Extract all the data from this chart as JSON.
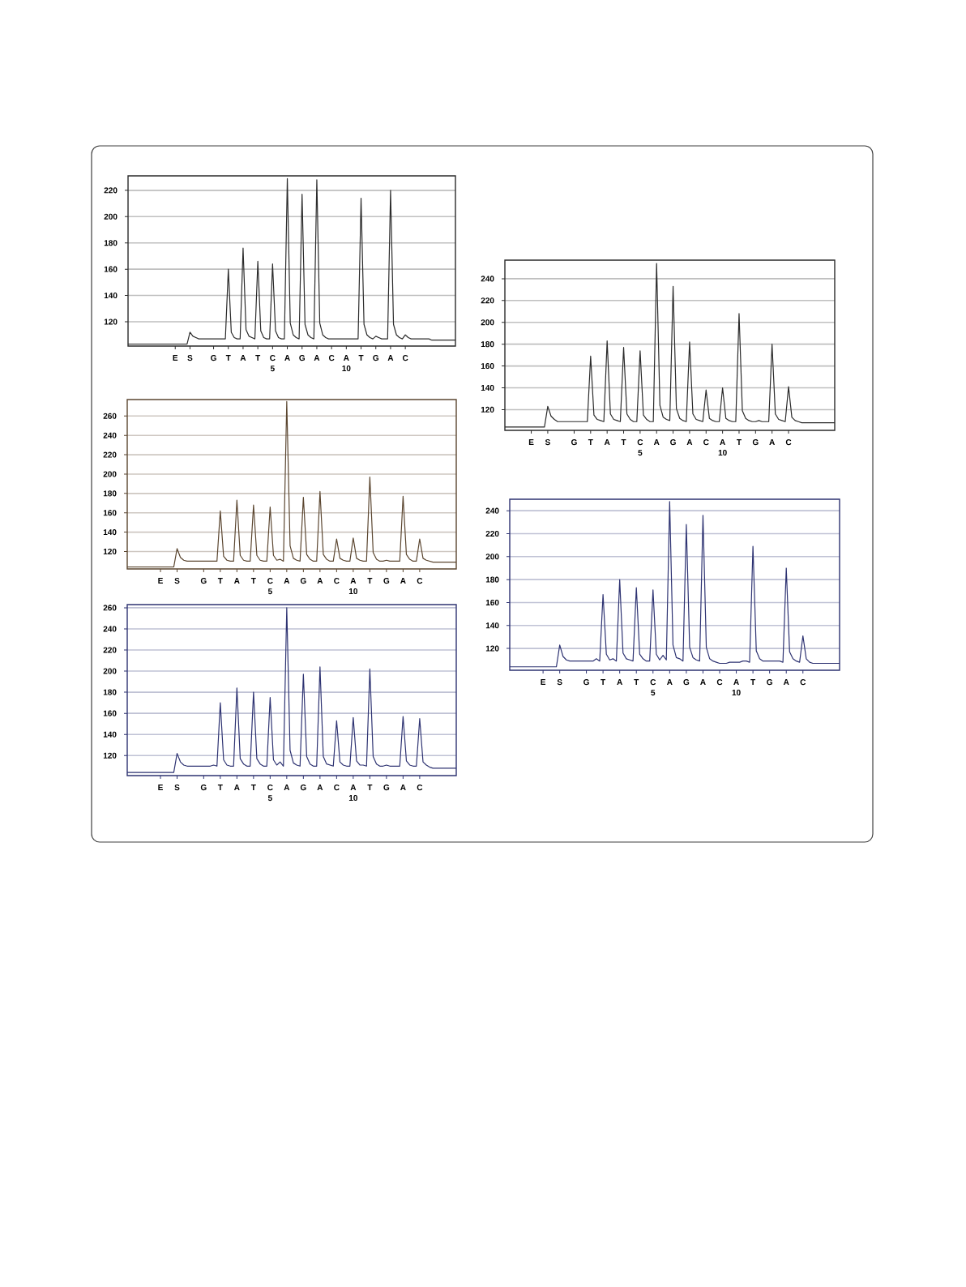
{
  "chart_data": [
    {
      "type": "line",
      "grid": "y",
      "ylim": [
        101.5,
        231
      ],
      "yticks": [
        120,
        140,
        160,
        180,
        200,
        220
      ],
      "categories": [
        null,
        null,
        null,
        null,
        null,
        null,
        null,
        null,
        null,
        null,
        null,
        null,
        null,
        null,
        null,
        null,
        "E",
        null,
        null,
        null,
        null,
        "S",
        null,
        null,
        null,
        null,
        null,
        null,
        null,
        "G",
        null,
        null,
        null,
        null,
        "T",
        null,
        null,
        null,
        null,
        "A",
        null,
        null,
        null,
        null,
        "T",
        null,
        null,
        null,
        null,
        "C 5",
        null,
        null,
        null,
        null,
        "A",
        null,
        null,
        null,
        null,
        "G",
        null,
        null,
        null,
        null,
        "A",
        null,
        null,
        null,
        null,
        "C",
        null,
        null,
        null,
        null,
        "A 10",
        null,
        null,
        null,
        null,
        "T",
        null,
        null,
        null,
        null,
        "G",
        null,
        null,
        null,
        null,
        "A",
        null,
        null,
        null,
        null,
        "C",
        null,
        null,
        null,
        null,
        null,
        null,
        null,
        null,
        null,
        null,
        null,
        null,
        null,
        null,
        null,
        null,
        null
      ],
      "series": [
        {
          "color": "#2b2b2b",
          "values": [
            103,
            103,
            103,
            103,
            103,
            103,
            103,
            103,
            103,
            103,
            103,
            103,
            103,
            103,
            103,
            103,
            103,
            103,
            103,
            103,
            103,
            112,
            109,
            108,
            107,
            107,
            107,
            107,
            107,
            107,
            107,
            107,
            107,
            107,
            160,
            112,
            108,
            107,
            107,
            176,
            114,
            109,
            108,
            107,
            166,
            113,
            108,
            107,
            107,
            164,
            113,
            108,
            107,
            107,
            229,
            119,
            110,
            108,
            107,
            217,
            118,
            110,
            108,
            107,
            228,
            119,
            110,
            108,
            107,
            107,
            107,
            107,
            107,
            107,
            107,
            107,
            107,
            107,
            107,
            214,
            118,
            110,
            108,
            107,
            109,
            108,
            107,
            107,
            107,
            220,
            118,
            110,
            108,
            107,
            110,
            108,
            107,
            107,
            107,
            107,
            107,
            107,
            107,
            106,
            106,
            106,
            106,
            106,
            106,
            106,
            106,
            106
          ]
        }
      ]
    },
    {
      "type": "line",
      "grid": "y",
      "ylim": [
        102,
        277
      ],
      "yticks": [
        120,
        140,
        160,
        180,
        200,
        220,
        240,
        260
      ],
      "categories": [
        null,
        null,
        null,
        null,
        null,
        null,
        null,
        null,
        null,
        null,
        "E",
        null,
        null,
        null,
        null,
        "S",
        null,
        null,
        null,
        null,
        null,
        null,
        null,
        "G",
        null,
        null,
        null,
        null,
        "T",
        null,
        null,
        null,
        null,
        "A",
        null,
        null,
        null,
        null,
        "T",
        null,
        null,
        null,
        null,
        "C 5",
        null,
        null,
        null,
        null,
        "A",
        null,
        null,
        null,
        null,
        "G",
        null,
        null,
        null,
        null,
        "A",
        null,
        null,
        null,
        null,
        "C",
        null,
        null,
        null,
        null,
        "A 10",
        null,
        null,
        null,
        null,
        "T",
        null,
        null,
        null,
        null,
        "G",
        null,
        null,
        null,
        null,
        "A",
        null,
        null,
        null,
        null,
        "C",
        null,
        null,
        null,
        null,
        null,
        null,
        null,
        null,
        null,
        null,
        null
      ],
      "series": [
        {
          "color": "#5b4630",
          "values": [
            104,
            104,
            104,
            104,
            104,
            104,
            104,
            104,
            104,
            104,
            104,
            104,
            104,
            104,
            104,
            123,
            114,
            111,
            110,
            110,
            110,
            110,
            110,
            110,
            110,
            110,
            110,
            110,
            162,
            115,
            111,
            110,
            110,
            173,
            116,
            111,
            110,
            110,
            168,
            116,
            111,
            110,
            110,
            166,
            116,
            111,
            112,
            110,
            275,
            126,
            113,
            111,
            110,
            176,
            117,
            112,
            110,
            110,
            182,
            117,
            112,
            110,
            110,
            133,
            113,
            111,
            110,
            110,
            134,
            113,
            111,
            110,
            110,
            197,
            119,
            112,
            110,
            110,
            111,
            110,
            110,
            110,
            110,
            177,
            117,
            112,
            110,
            110,
            133,
            113,
            111,
            110,
            109,
            109,
            109,
            109,
            109,
            109,
            109,
            109
          ]
        }
      ]
    },
    {
      "type": "line",
      "grid": "y",
      "ylim": [
        101,
        263
      ],
      "yticks": [
        120,
        140,
        160,
        180,
        200,
        220,
        240,
        260
      ],
      "categories": [
        null,
        null,
        null,
        null,
        null,
        null,
        null,
        null,
        null,
        null,
        "E",
        null,
        null,
        null,
        null,
        "S",
        null,
        null,
        null,
        null,
        null,
        null,
        null,
        "G",
        null,
        null,
        null,
        null,
        "T",
        null,
        null,
        null,
        null,
        "A",
        null,
        null,
        null,
        null,
        "T",
        null,
        null,
        null,
        null,
        "C 5",
        null,
        null,
        null,
        null,
        "A",
        null,
        null,
        null,
        null,
        "G",
        null,
        null,
        null,
        null,
        "A",
        null,
        null,
        null,
        null,
        "C",
        null,
        null,
        null,
        null,
        "A 10",
        null,
        null,
        null,
        null,
        "T",
        null,
        null,
        null,
        null,
        "G",
        null,
        null,
        null,
        null,
        "A",
        null,
        null,
        null,
        null,
        "C",
        null,
        null,
        null,
        null,
        null,
        null,
        null,
        null,
        null,
        null,
        null
      ],
      "series": [
        {
          "color": "#2e3372",
          "values": [
            104,
            104,
            104,
            104,
            104,
            104,
            104,
            104,
            104,
            104,
            104,
            104,
            104,
            104,
            104,
            122,
            114,
            111,
            110,
            110,
            110,
            110,
            110,
            110,
            110,
            110,
            111,
            110,
            170,
            116,
            111,
            110,
            110,
            184,
            117,
            112,
            110,
            110,
            180,
            117,
            112,
            110,
            110,
            175,
            116,
            111,
            114,
            110,
            260,
            125,
            113,
            111,
            110,
            197,
            119,
            112,
            110,
            110,
            204,
            119,
            112,
            111,
            110,
            153,
            114,
            111,
            110,
            110,
            156,
            115,
            111,
            111,
            110,
            202,
            119,
            112,
            110,
            110,
            111,
            110,
            110,
            110,
            110,
            157,
            115,
            111,
            110,
            110,
            155,
            114,
            111,
            109,
            108,
            108,
            108,
            108,
            108,
            108,
            108,
            108
          ]
        }
      ]
    },
    {
      "type": "line",
      "grid": "y",
      "ylim": [
        101,
        257
      ],
      "yticks": [
        120,
        140,
        160,
        180,
        200,
        220,
        240
      ],
      "categories": [
        null,
        null,
        null,
        null,
        null,
        null,
        null,
        null,
        "E",
        null,
        null,
        null,
        null,
        "S",
        null,
        null,
        null,
        null,
        null,
        null,
        null,
        "G",
        null,
        null,
        null,
        null,
        "T",
        null,
        null,
        null,
        null,
        "A",
        null,
        null,
        null,
        null,
        "T",
        null,
        null,
        null,
        null,
        "C 5",
        null,
        null,
        null,
        null,
        "A",
        null,
        null,
        null,
        null,
        "G",
        null,
        null,
        null,
        null,
        "A",
        null,
        null,
        null,
        null,
        "C",
        null,
        null,
        null,
        null,
        "A 10",
        null,
        null,
        null,
        null,
        "T",
        null,
        null,
        null,
        null,
        "G",
        null,
        null,
        null,
        null,
        "A",
        null,
        null,
        null,
        null,
        "C",
        null,
        null,
        null,
        null,
        null,
        null,
        null,
        null,
        null,
        null,
        null,
        null,
        null,
        null
      ],
      "series": [
        {
          "color": "#2b2b2b",
          "values": [
            104,
            104,
            104,
            104,
            104,
            104,
            104,
            104,
            104,
            104,
            104,
            104,
            104,
            123,
            114,
            111,
            109,
            109,
            109,
            109,
            109,
            109,
            109,
            109,
            109,
            109,
            169,
            115,
            111,
            110,
            109,
            183,
            116,
            111,
            110,
            109,
            177,
            116,
            111,
            109,
            109,
            174,
            115,
            111,
            109,
            109,
            254,
            124,
            113,
            111,
            110,
            233,
            121,
            112,
            110,
            109,
            182,
            116,
            111,
            110,
            109,
            138,
            112,
            110,
            109,
            109,
            140,
            112,
            110,
            109,
            109,
            208,
            119,
            112,
            110,
            109,
            109,
            110,
            109,
            109,
            109,
            180,
            116,
            111,
            110,
            109,
            141,
            113,
            110,
            109,
            108,
            108,
            108,
            108,
            108,
            108,
            108,
            108,
            108,
            108,
            108
          ]
        }
      ]
    },
    {
      "type": "line",
      "grid": "y",
      "ylim": [
        101,
        250
      ],
      "yticks": [
        120,
        140,
        160,
        180,
        200,
        220,
        240
      ],
      "categories": [
        null,
        null,
        null,
        null,
        null,
        null,
        null,
        null,
        null,
        null,
        "E",
        null,
        null,
        null,
        null,
        "S",
        null,
        null,
        null,
        null,
        null,
        null,
        null,
        "G",
        null,
        null,
        null,
        null,
        "T",
        null,
        null,
        null,
        null,
        "A",
        null,
        null,
        null,
        null,
        "T",
        null,
        null,
        null,
        null,
        "C 5",
        null,
        null,
        null,
        null,
        "A",
        null,
        null,
        null,
        null,
        "G",
        null,
        null,
        null,
        null,
        "A",
        null,
        null,
        null,
        null,
        "C",
        null,
        null,
        null,
        null,
        "A 10",
        null,
        null,
        null,
        null,
        "T",
        null,
        null,
        null,
        null,
        "G",
        null,
        null,
        null,
        null,
        "A",
        null,
        null,
        null,
        null,
        "C",
        null,
        null,
        null,
        null,
        null,
        null,
        null,
        null,
        null,
        null,
        null
      ],
      "series": [
        {
          "color": "#2e3372",
          "values": [
            104,
            104,
            104,
            104,
            104,
            104,
            104,
            104,
            104,
            104,
            104,
            104,
            104,
            104,
            104,
            123,
            113,
            110,
            109,
            109,
            109,
            109,
            109,
            109,
            109,
            109,
            111,
            109,
            167,
            115,
            110,
            111,
            109,
            180,
            116,
            111,
            110,
            109,
            173,
            115,
            111,
            109,
            109,
            171,
            115,
            110,
            114,
            110,
            248,
            123,
            112,
            111,
            109,
            228,
            121,
            112,
            110,
            109,
            236,
            121,
            111,
            109,
            108,
            107,
            107,
            107,
            108,
            108,
            108,
            108,
            109,
            109,
            108,
            209,
            118,
            111,
            109,
            109,
            109,
            109,
            109,
            109,
            108,
            190,
            117,
            111,
            109,
            108,
            131,
            111,
            108,
            107,
            107,
            107,
            107,
            107,
            107,
            107,
            107,
            107
          ]
        }
      ]
    }
  ]
}
